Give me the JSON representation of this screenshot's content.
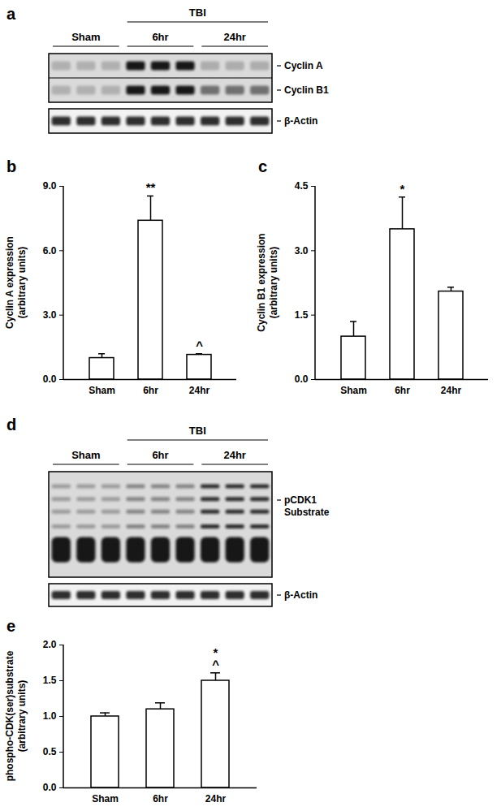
{
  "blots": [
    {
      "panel": "a",
      "groups": [
        "Sham",
        "6hr",
        "24hr"
      ],
      "parent": {
        "label": "TBI",
        "groups": [
          "6hr",
          "24hr"
        ]
      },
      "boxes": [
        [
          "Cyclin A",
          "Cyclin B1"
        ],
        [
          "β-Actin"
        ]
      ]
    },
    {
      "panel": "d",
      "groups": [
        "Sham",
        "6hr",
        "24hr"
      ],
      "parent": {
        "label": "TBI",
        "groups": [
          "6hr",
          "24hr"
        ]
      },
      "boxes": [
        [
          "pCDK1\nSubstrate"
        ],
        [
          "β-Actin"
        ]
      ]
    }
  ],
  "chart_data": [
    {
      "panel": "b",
      "type": "bar",
      "ylabel": "Cyclin A expression\n(arbitrary units)",
      "categories": [
        "Sham",
        "6hr",
        "24hr"
      ],
      "values": [
        1.0,
        7.4,
        1.15
      ],
      "errors": [
        0.2,
        1.15,
        0.05
      ],
      "color": "#ffffff",
      "ylim": [
        0,
        9
      ],
      "yticks": [
        {
          "value": 0,
          "label": "0.0"
        },
        {
          "value": 3,
          "label": "3.0"
        },
        {
          "value": 6,
          "label": "6.0"
        },
        {
          "value": 9,
          "label": "9.0"
        }
      ],
      "annotations": [
        {
          "category": "6hr",
          "text": "**"
        },
        {
          "category": "24hr",
          "text": "^"
        }
      ]
    },
    {
      "panel": "c",
      "type": "bar",
      "ylabel": "Cyclin B1 expression\n(arbitrary units)",
      "categories": [
        "Sham",
        "6hr",
        "24hr"
      ],
      "values": [
        1.0,
        3.5,
        2.05
      ],
      "errors": [
        0.35,
        0.75,
        0.1
      ],
      "color": "#ffffff",
      "ylim": [
        0,
        4.5
      ],
      "yticks": [
        {
          "value": 0,
          "label": "0.0"
        },
        {
          "value": 1.5,
          "label": "1.5"
        },
        {
          "value": 3,
          "label": "3.0"
        },
        {
          "value": 4.5,
          "label": "4.5"
        }
      ],
      "annotations": [
        {
          "category": "6hr",
          "text": "*"
        }
      ]
    },
    {
      "panel": "e",
      "type": "bar",
      "ylabel": "phospho-CDK(ser)substrate\n(arbitrary units)",
      "categories": [
        "Sham",
        "6hr",
        "24hr"
      ],
      "values": [
        1.0,
        1.1,
        1.5
      ],
      "errors": [
        0.05,
        0.09,
        0.11
      ],
      "color": "#ffffff",
      "ylim": [
        0,
        2
      ],
      "yticks": [
        {
          "value": 0,
          "label": "0.0"
        },
        {
          "value": 0.5,
          "label": "0.5"
        },
        {
          "value": 1,
          "label": "1.0"
        },
        {
          "value": 1.5,
          "label": "1.5"
        },
        {
          "value": 2,
          "label": "2.0"
        }
      ],
      "annotations": [
        {
          "category": "24hr",
          "text": "*"
        },
        {
          "category": "24hr",
          "text": "^"
        }
      ]
    }
  ]
}
